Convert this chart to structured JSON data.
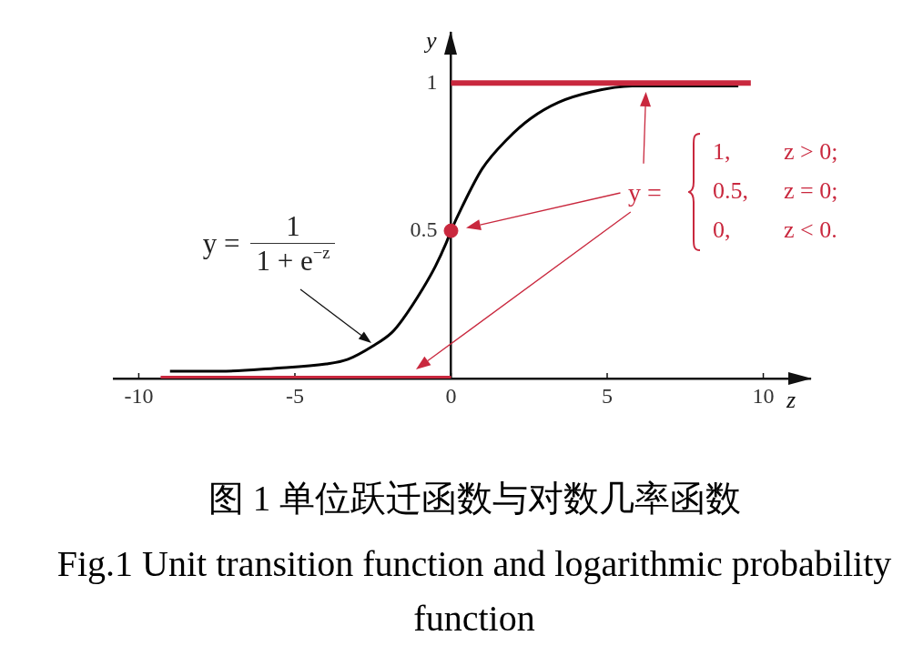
{
  "chart_data": {
    "type": "line",
    "title": "图 1 单位跃迁函数与对数几率函数",
    "subtitle": "Fig.1 Unit transition function and logarithmic probability function",
    "xlabel": "z",
    "ylabel": "y",
    "xlim": [
      -10.8,
      11.5
    ],
    "xticks": [
      -10,
      -5,
      0,
      5,
      10
    ],
    "ylim": [
      0,
      1.17
    ],
    "yticks": [
      0.5,
      1
    ],
    "annotations": [
      "y =\n1\n1 + e$^{−z}$",
      "y =\n1,\tz > 0;\n0.5,\tz = 0;\n0,\tz < 0."
    ],
    "series": [
      {
        "color": "#000000",
        "x": [
          -9.0,
          -7.2,
          -5.7,
          -4.0,
          -3.3,
          -2.5,
          -1.9,
          -1.55,
          -0.9,
          -0.5,
          -0.15,
          0,
          0.35,
          1.0,
          1.8,
          2.55,
          3.45,
          4.5,
          5.8,
          9.2
        ],
        "values": [
          0.025,
          0.025,
          0.034,
          0.049,
          0.065,
          0.11,
          0.155,
          0.2,
          0.305,
          0.38,
          0.46,
          0.5,
          0.58,
          0.71,
          0.81,
          0.88,
          0.935,
          0.97,
          0.99,
          0.99
        ]
      },
      {
        "color": "#c9283e",
        "x": [
          -9.3,
          0
        ],
        "values": [
          0,
          0
        ]
      },
      {
        "color": "#c9283e",
        "x": [
          0,
          9.6
        ],
        "values": [
          1,
          1
        ]
      },
      {
        "type": "scatter",
        "color": "#c9283e",
        "marker": "circle",
        "x": [
          0
        ],
        "values": [
          0.5
        ]
      }
    ]
  }
}
